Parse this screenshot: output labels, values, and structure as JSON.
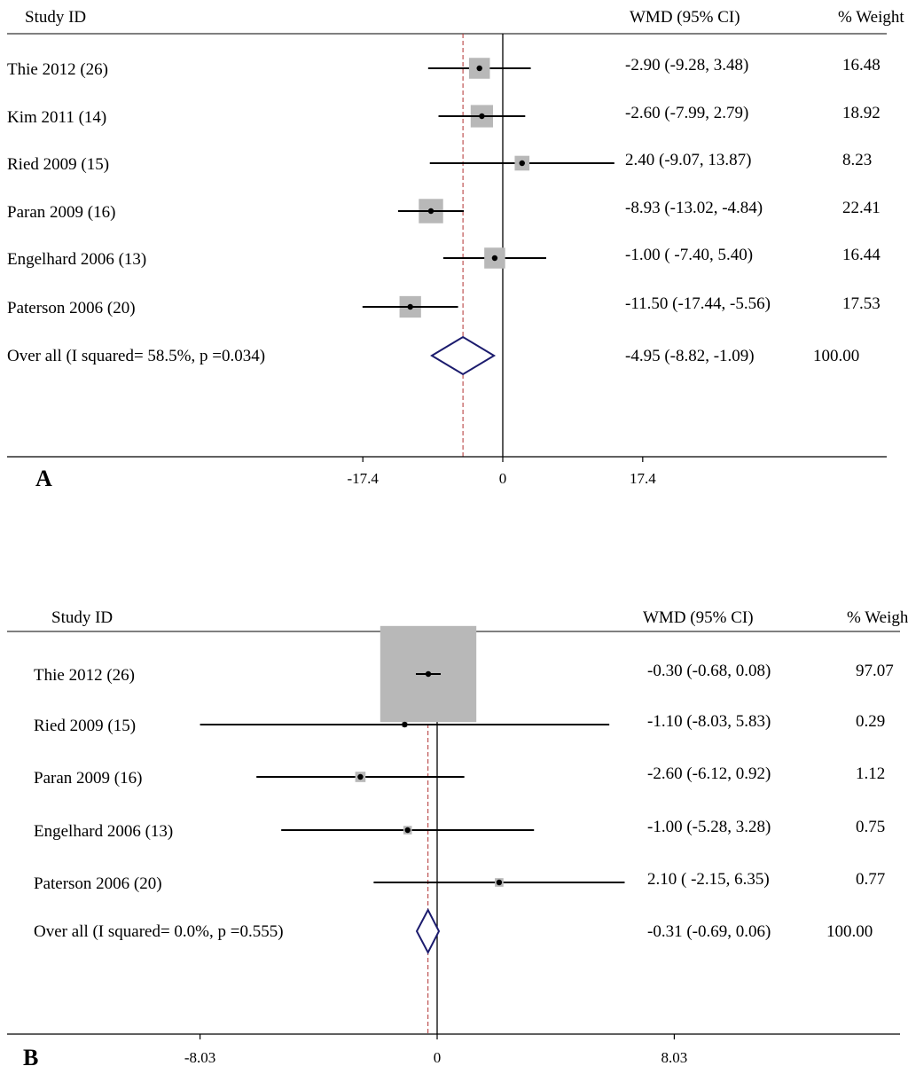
{
  "chart_data": [
    {
      "type": "forest",
      "panel_label": "A",
      "headers": {
        "study": "Study ID",
        "effect": "WMD (95% CI)",
        "weight": "% Weight"
      },
      "studies": [
        {
          "label": "Thie 2012 (26)",
          "wmd": -2.9,
          "lower": -9.28,
          "upper": 3.48,
          "weight": 16.48,
          "ci_text": "-2.90 (-9.28, 3.48)",
          "weight_text": "16.48"
        },
        {
          "label": "Kim 2011 (14)",
          "wmd": -2.6,
          "lower": -7.99,
          "upper": 2.79,
          "weight": 18.92,
          "ci_text": "-2.60 (-7.99, 2.79)",
          "weight_text": "18.92"
        },
        {
          "label": "Ried 2009 (15)",
          "wmd": 2.4,
          "lower": -9.07,
          "upper": 13.87,
          "weight": 8.23,
          "ci_text": "2.40 (-9.07, 13.87)",
          "weight_text": "8.23"
        },
        {
          "label": "Paran 2009 (16)",
          "wmd": -8.93,
          "lower": -13.02,
          "upper": -4.84,
          "weight": 22.41,
          "ci_text": "-8.93 (-13.02, -4.84)",
          "weight_text": "22.41"
        },
        {
          "label": "Engelhard 2006 (13)",
          "wmd": -1.0,
          "lower": -7.4,
          "upper": 5.4,
          "weight": 16.44,
          "ci_text": "-1.00 ( -7.40, 5.40)",
          "weight_text": "16.44"
        },
        {
          "label": "Paterson 2006 (20)",
          "wmd": -11.5,
          "lower": -17.44,
          "upper": -5.56,
          "weight": 17.53,
          "ci_text": "-11.50 (-17.44, -5.56)",
          "weight_text": "17.53"
        }
      ],
      "overall": {
        "label": "Over all (I squared= 58.5%, p =0.034)",
        "wmd": -4.95,
        "lower": -8.82,
        "upper": -1.09,
        "weight": 100.0,
        "ci_text": "-4.95 (-8.82, -1.09)",
        "weight_text": "100.00"
      },
      "xlim": [
        -28,
        28
      ],
      "xticks": [
        -17.4,
        0,
        17.4
      ],
      "xtick_labels": [
        "-17.4",
        "0",
        "17.4"
      ],
      "reference_line": 0,
      "pooled_line": -4.95
    },
    {
      "type": "forest",
      "panel_label": "B",
      "headers": {
        "study": "Study ID",
        "effect": "WMD (95% CI)",
        "weight": "% Weight"
      },
      "studies": [
        {
          "label": "Thie 2012 (26)",
          "wmd": -0.3,
          "lower": -0.68,
          "upper": 0.08,
          "weight": 97.07,
          "ci_text": "-0.30 (-0.68, 0.08)",
          "weight_text": "97.07"
        },
        {
          "label": "Ried 2009 (15)",
          "wmd": -1.1,
          "lower": -8.03,
          "upper": 5.83,
          "weight": 0.29,
          "ci_text": "-1.10 (-8.03, 5.83)",
          "weight_text": "0.29"
        },
        {
          "label": "Paran 2009 (16)",
          "wmd": -2.6,
          "lower": -6.12,
          "upper": 0.92,
          "weight": 1.12,
          "ci_text": "-2.60 (-6.12, 0.92)",
          "weight_text": "1.12"
        },
        {
          "label": "Engelhard 2006 (13)",
          "wmd": -1.0,
          "lower": -5.28,
          "upper": 3.28,
          "weight": 0.75,
          "ci_text": "-1.00 (-5.28, 3.28)",
          "weight_text": "0.75"
        },
        {
          "label": "Paterson 2006 (20)",
          "wmd": 2.1,
          "lower": -2.15,
          "upper": 6.35,
          "weight": 0.77,
          "ci_text": "2.10 ( -2.15, 6.35)",
          "weight_text": "0.77"
        }
      ],
      "overall": {
        "label": "Over all (I squared= 0.0%, p =0.555)",
        "wmd": -0.31,
        "lower": -0.69,
        "upper": 0.06,
        "weight": 100.0,
        "ci_text": "-0.31 (-0.69, 0.06)",
        "weight_text": "100.00"
      },
      "xlim": [
        -16,
        16
      ],
      "xticks": [
        -8.03,
        0,
        8.03
      ],
      "xtick_labels": [
        "-8.03",
        "0",
        "8.03"
      ],
      "reference_line": 0,
      "pooled_line": -0.31
    }
  ]
}
